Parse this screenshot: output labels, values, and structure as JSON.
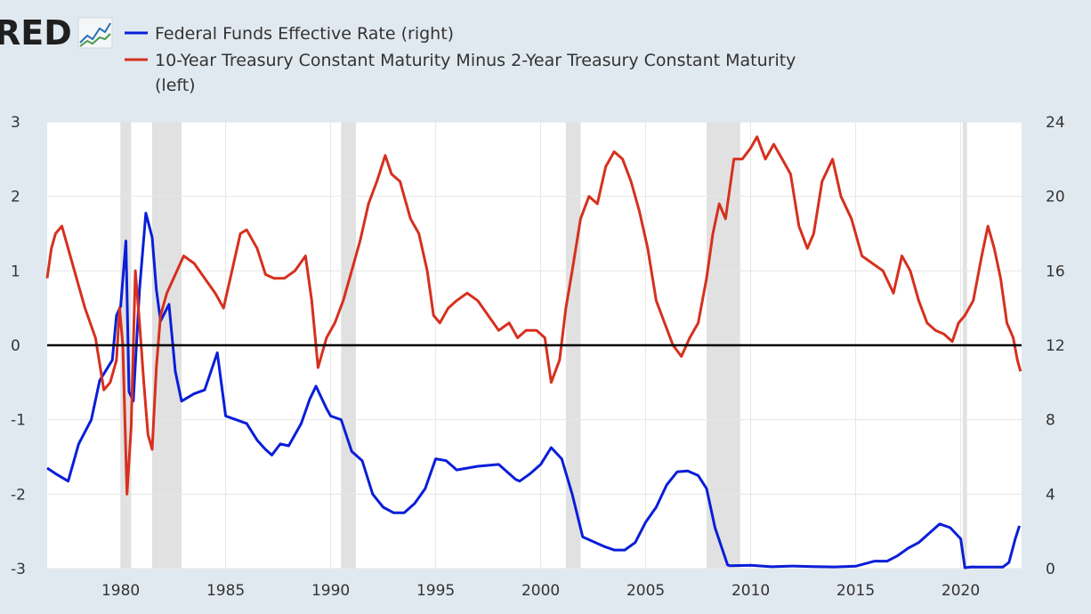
{
  "header": {
    "logo_text": "RED"
  },
  "chart_data": {
    "type": "line",
    "title": "",
    "xlabel": "",
    "xlim": [
      1976.5,
      2022.9
    ],
    "x_ticks": [
      "1980",
      "1985",
      "1990",
      "1995",
      "2000",
      "2005",
      "2010",
      "2015",
      "2020"
    ],
    "y_left": {
      "range": [
        -3,
        3
      ],
      "ticks": [
        "3",
        "2",
        "1",
        "0",
        "-1",
        "-2",
        "-3"
      ]
    },
    "y_right": {
      "range": [
        0,
        24
      ],
      "ticks": [
        "24",
        "20",
        "16",
        "12",
        "8",
        "4",
        "0"
      ]
    },
    "zero_line": 0,
    "grid": true,
    "legend_position": "top-left",
    "recessions": [
      [
        1980.0,
        1980.5
      ],
      [
        1981.5,
        1982.9
      ],
      [
        1990.5,
        1991.2
      ],
      [
        2001.2,
        2001.9
      ],
      [
        2007.9,
        2009.5
      ],
      [
        2020.1,
        2020.3
      ]
    ],
    "series": [
      {
        "name": "Federal Funds Effective Rate (right)",
        "axis": "right",
        "color": "#0a1ed8",
        "x": [
          1976.5,
          1976.9,
          1977.5,
          1978.0,
          1978.6,
          1979.0,
          1979.6,
          1979.8,
          1980.0,
          1980.25,
          1980.4,
          1980.6,
          1980.9,
          1981.2,
          1981.5,
          1981.7,
          1981.9,
          1982.3,
          1982.6,
          1982.9,
          1983.5,
          1984.0,
          1984.6,
          1985.0,
          1985.5,
          1986.0,
          1986.5,
          1986.9,
          1987.2,
          1987.6,
          1988.0,
          1988.6,
          1989.0,
          1989.3,
          1989.8,
          1990.0,
          1990.5,
          1991.0,
          1991.5,
          1992.0,
          1992.5,
          1993.0,
          1993.5,
          1994.0,
          1994.5,
          1995.0,
          1995.5,
          1996.0,
          1997.0,
          1998.0,
          1998.8,
          1999.0,
          1999.5,
          2000.0,
          2000.5,
          2001.0,
          2001.5,
          2002.0,
          2003.0,
          2003.5,
          2004.0,
          2004.5,
          2005.0,
          2005.5,
          2006.0,
          2006.5,
          2007.0,
          2007.5,
          2007.9,
          2008.3,
          2008.9,
          2009.0,
          2010.0,
          2011.0,
          2012.0,
          2013.0,
          2014.0,
          2015.0,
          2015.9,
          2016.5,
          2017.0,
          2017.5,
          2018.0,
          2018.5,
          2019.0,
          2019.5,
          2020.0,
          2020.2,
          2020.5,
          2021.0,
          2021.5,
          2022.0,
          2022.3,
          2022.6,
          2022.8
        ],
        "values": [
          5.4,
          5.1,
          4.7,
          6.7,
          8.0,
          10.1,
          11.2,
          13.6,
          14.1,
          17.6,
          9.5,
          9.0,
          15.0,
          19.1,
          17.8,
          15.0,
          13.3,
          14.2,
          10.6,
          9.0,
          9.4,
          9.6,
          11.6,
          8.2,
          8.0,
          7.8,
          6.9,
          6.4,
          6.1,
          6.7,
          6.6,
          7.8,
          9.1,
          9.8,
          8.6,
          8.2,
          8.0,
          6.3,
          5.8,
          4.0,
          3.3,
          3.0,
          3.0,
          3.5,
          4.3,
          5.9,
          5.8,
          5.3,
          5.5,
          5.6,
          4.8,
          4.7,
          5.1,
          5.6,
          6.5,
          5.9,
          4.0,
          1.7,
          1.2,
          1.0,
          1.0,
          1.4,
          2.5,
          3.3,
          4.5,
          5.2,
          5.25,
          5.0,
          4.3,
          2.2,
          0.2,
          0.16,
          0.18,
          0.1,
          0.14,
          0.11,
          0.09,
          0.13,
          0.4,
          0.4,
          0.7,
          1.1,
          1.4,
          1.9,
          2.4,
          2.2,
          1.6,
          0.05,
          0.09,
          0.08,
          0.08,
          0.08,
          0.33,
          1.6,
          2.3
        ]
      },
      {
        "name": "10-Year Treasury Constant Maturity Minus 2-Year Treasury Constant Maturity (left)",
        "axis": "left",
        "color": "#d6301e",
        "x": [
          1976.5,
          1976.7,
          1976.9,
          1977.2,
          1977.5,
          1977.9,
          1978.3,
          1978.8,
          1979.2,
          1979.5,
          1979.8,
          1979.95,
          1980.1,
          1980.3,
          1980.5,
          1980.7,
          1980.9,
          1981.1,
          1981.3,
          1981.5,
          1981.7,
          1981.9,
          1982.2,
          1982.6,
          1983.0,
          1983.5,
          1984.0,
          1984.5,
          1984.9,
          1985.3,
          1985.7,
          1986.0,
          1986.5,
          1986.9,
          1987.3,
          1987.8,
          1988.3,
          1988.8,
          1989.1,
          1989.4,
          1989.8,
          1990.2,
          1990.6,
          1991.0,
          1991.4,
          1991.8,
          1992.2,
          1992.6,
          1992.9,
          1993.3,
          1993.8,
          1994.2,
          1994.6,
          1994.9,
          1995.2,
          1995.6,
          1996.0,
          1996.5,
          1997.0,
          1997.5,
          1998.0,
          1998.5,
          1998.9,
          1999.3,
          1999.8,
          2000.2,
          2000.5,
          2000.9,
          2001.2,
          2001.5,
          2001.9,
          2002.3,
          2002.7,
          2003.1,
          2003.5,
          2003.9,
          2004.3,
          2004.7,
          2005.1,
          2005.5,
          2005.9,
          2006.3,
          2006.7,
          2007.1,
          2007.5,
          2007.9,
          2008.2,
          2008.5,
          2008.8,
          2009.2,
          2009.6,
          2010.0,
          2010.3,
          2010.7,
          2011.1,
          2011.5,
          2011.9,
          2012.3,
          2012.7,
          2013.0,
          2013.4,
          2013.9,
          2014.3,
          2014.8,
          2015.3,
          2015.8,
          2016.3,
          2016.8,
          2017.2,
          2017.6,
          2018.0,
          2018.4,
          2018.8,
          2019.2,
          2019.6,
          2019.9,
          2020.2,
          2020.6,
          2021.0,
          2021.3,
          2021.6,
          2021.9,
          2022.2,
          2022.5,
          2022.7,
          2022.85
        ],
        "values": [
          0.9,
          1.3,
          1.5,
          1.6,
          1.3,
          0.9,
          0.5,
          0.1,
          -0.6,
          -0.5,
          -0.2,
          0.5,
          0.0,
          -2.0,
          -1.1,
          1.0,
          0.3,
          -0.5,
          -1.2,
          -1.4,
          -0.3,
          0.4,
          0.7,
          0.95,
          1.2,
          1.1,
          0.9,
          0.7,
          0.5,
          1.0,
          1.5,
          1.55,
          1.3,
          0.95,
          0.9,
          0.9,
          1.0,
          1.2,
          0.6,
          -0.3,
          0.1,
          0.3,
          0.6,
          1.0,
          1.4,
          1.9,
          2.2,
          2.55,
          2.3,
          2.2,
          1.7,
          1.5,
          1.0,
          0.4,
          0.3,
          0.5,
          0.6,
          0.7,
          0.6,
          0.4,
          0.2,
          0.3,
          0.1,
          0.2,
          0.2,
          0.1,
          -0.5,
          -0.2,
          0.5,
          1.0,
          1.7,
          2.0,
          1.9,
          2.4,
          2.6,
          2.5,
          2.2,
          1.8,
          1.3,
          0.6,
          0.3,
          0.0,
          -0.15,
          0.1,
          0.3,
          0.9,
          1.5,
          1.9,
          1.7,
          2.5,
          2.5,
          2.65,
          2.8,
          2.5,
          2.7,
          2.5,
          2.3,
          1.6,
          1.3,
          1.5,
          2.2,
          2.5,
          2.0,
          1.7,
          1.2,
          1.1,
          1.0,
          0.7,
          1.2,
          1.0,
          0.6,
          0.3,
          0.2,
          0.15,
          0.05,
          0.3,
          0.4,
          0.6,
          1.2,
          1.6,
          1.3,
          0.9,
          0.3,
          0.1,
          -0.2,
          -0.35
        ]
      }
    ]
  }
}
